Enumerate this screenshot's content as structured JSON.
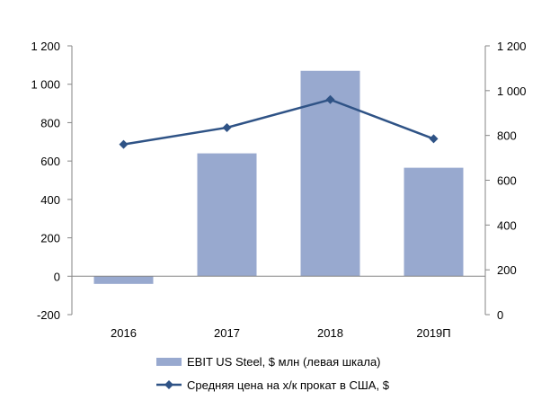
{
  "chart_data": {
    "type": "bar+line",
    "categories": [
      "2016",
      "2017",
      "2018",
      "2019П"
    ],
    "series": [
      {
        "name": "EBIT US Steel, $ млн (левая шкала)",
        "type": "bar",
        "axis": "left",
        "color": "#98A9CF",
        "values": [
          -40,
          640,
          1070,
          565
        ]
      },
      {
        "name": "Средняя цена на х/к прокат в США, $",
        "type": "line",
        "axis": "right",
        "color": "#2F5386",
        "marker": "diamond",
        "values": [
          760,
          835,
          960,
          785
        ]
      }
    ],
    "left_axis": {
      "ylim": [
        -200,
        1200
      ],
      "ticks": [
        -200,
        0,
        200,
        400,
        600,
        800,
        1000,
        1200
      ],
      "tick_labels": [
        "-200",
        "0",
        "200",
        "400",
        "600",
        "800",
        "1 000",
        "1 200"
      ]
    },
    "right_axis": {
      "ylim": [
        0,
        1200
      ],
      "ticks": [
        0,
        200,
        400,
        600,
        800,
        1000,
        1200
      ],
      "tick_labels": [
        "0",
        "200",
        "400",
        "600",
        "800",
        "1 000",
        "1 200"
      ]
    },
    "grid": false,
    "legend_position": "bottom"
  }
}
